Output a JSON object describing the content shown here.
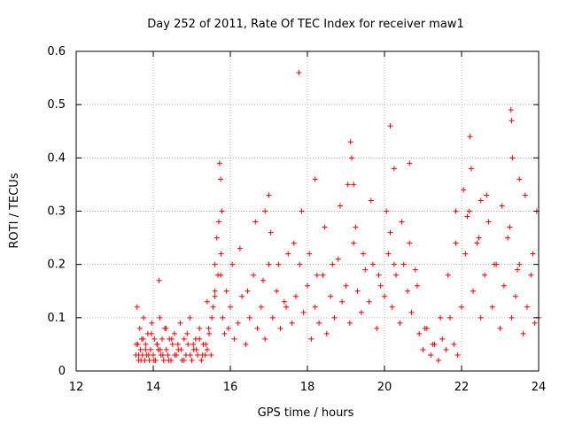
{
  "chart_data": {
    "type": "scatter",
    "title": "Day 252 of 2011, Rate Of TEC Index for receiver maw1",
    "xlabel": "GPS time / hours",
    "ylabel": "ROTI / TECUs",
    "xlim": [
      12,
      24
    ],
    "ylim": [
      0,
      0.6
    ],
    "x_ticks": [
      12,
      14,
      16,
      18,
      20,
      22,
      24
    ],
    "x_tick_labels": [
      "12",
      "14",
      "16",
      "18",
      "20",
      "22",
      "24"
    ],
    "y_ticks": [
      0,
      0.1,
      0.2,
      0.3,
      0.4,
      0.5,
      0.6
    ],
    "y_tick_labels": [
      "0",
      "0.1",
      "0.2",
      "0.3",
      "0.4",
      "0.5",
      "0.6"
    ],
    "grid": true,
    "marker": "+",
    "series": [
      {
        "color": "#ff0000",
        "x": [
          13.55,
          13.58,
          13.6,
          13.62,
          13.65,
          13.67,
          13.7,
          13.72,
          13.75,
          13.78,
          13.8,
          13.83,
          13.86,
          13.9,
          13.93,
          13.96,
          14.0,
          14.03,
          14.06,
          14.1,
          14.13,
          14.17,
          14.2,
          14.23,
          14.27,
          14.3,
          14.34,
          14.38,
          14.42,
          14.46,
          14.5,
          14.55,
          14.6,
          14.65,
          14.7,
          14.75,
          14.8,
          14.85,
          14.9,
          14.95,
          15.0,
          15.05,
          15.1,
          15.15,
          15.2,
          15.25,
          15.3,
          15.35,
          15.4,
          15.45,
          15.5,
          15.55,
          15.6,
          15.65,
          15.7,
          15.75,
          15.8,
          15.85,
          15.9,
          15.95,
          16.0,
          16.1,
          16.2,
          16.3,
          16.4,
          16.5,
          16.6,
          16.7,
          16.8,
          16.9,
          17.0,
          17.1,
          17.2,
          17.3,
          17.4,
          17.5,
          17.6,
          17.7,
          17.8,
          17.9,
          18.0,
          18.1,
          18.2,
          18.3,
          18.4,
          18.5,
          18.6,
          18.7,
          18.8,
          18.9,
          19.0,
          19.1,
          19.2,
          19.3,
          19.4,
          19.5,
          19.6,
          19.7,
          19.8,
          19.9,
          20.0,
          20.1,
          20.2,
          20.3,
          20.4,
          20.5,
          20.6,
          20.7,
          20.8,
          20.9,
          21.0,
          21.1,
          21.2,
          21.3,
          21.4,
          21.5,
          21.6,
          21.7,
          21.8,
          21.9,
          22.0,
          22.1,
          22.2,
          22.3,
          22.4,
          22.5,
          22.6,
          22.7,
          22.8,
          22.9,
          23.0,
          23.1,
          23.2,
          23.3,
          23.4,
          23.5,
          23.6,
          23.7,
          23.8,
          23.9,
          24.0,
          13.56,
          13.62,
          13.68,
          13.74,
          13.8,
          13.88,
          13.95,
          14.02,
          14.1,
          14.18,
          14.25,
          14.33,
          14.4,
          14.48,
          14.56,
          14.64,
          14.72,
          14.8,
          14.88,
          14.96,
          15.04,
          15.12,
          15.2,
          15.28,
          15.36,
          15.44,
          15.52,
          15.6,
          15.68,
          15.76,
          15.72,
          15.75,
          15.78,
          16.05,
          16.25,
          16.45,
          16.65,
          16.85,
          17.05,
          17.25,
          17.45,
          17.65,
          17.85,
          18.05,
          18.25,
          18.45,
          18.65,
          18.85,
          19.05,
          19.15,
          19.25,
          19.45,
          19.65,
          19.85,
          20.05,
          20.15,
          20.25,
          20.45,
          20.65,
          20.85,
          21.05,
          21.25,
          21.45,
          21.65,
          21.85,
          22.05,
          22.15,
          22.25,
          22.45,
          22.65,
          22.85,
          23.05,
          23.25,
          23.45,
          23.65,
          23.85,
          17.78,
          19.12,
          20.15,
          23.28,
          23.3,
          22.22,
          23.32,
          20.65,
          20.25,
          18.2,
          19.2,
          17.0,
          21.85,
          22.5,
          16.9,
          14.15,
          15.4,
          15.6,
          23.5,
          23.95
        ],
        "y": [
          0.03,
          0.12,
          0.05,
          0.02,
          0.08,
          0.04,
          0.06,
          0.03,
          0.1,
          0.02,
          0.05,
          0.03,
          0.07,
          0.02,
          0.04,
          0.09,
          0.03,
          0.06,
          0.02,
          0.05,
          0.04,
          0.1,
          0.03,
          0.06,
          0.02,
          0.08,
          0.04,
          0.03,
          0.06,
          0.02,
          0.05,
          0.07,
          0.03,
          0.04,
          0.09,
          0.02,
          0.06,
          0.03,
          0.05,
          0.1,
          0.02,
          0.04,
          0.06,
          0.03,
          0.08,
          0.02,
          0.05,
          0.03,
          0.04,
          0.07,
          0.03,
          0.12,
          0.2,
          0.25,
          0.28,
          0.18,
          0.1,
          0.07,
          0.15,
          0.08,
          0.12,
          0.06,
          0.09,
          0.14,
          0.05,
          0.1,
          0.18,
          0.08,
          0.12,
          0.06,
          0.2,
          0.1,
          0.15,
          0.08,
          0.13,
          0.22,
          0.09,
          0.14,
          0.2,
          0.11,
          0.16,
          0.06,
          0.12,
          0.09,
          0.18,
          0.07,
          0.14,
          0.1,
          0.21,
          0.13,
          0.16,
          0.09,
          0.24,
          0.15,
          0.11,
          0.19,
          0.13,
          0.2,
          0.08,
          0.16,
          0.14,
          0.22,
          0.12,
          0.18,
          0.09,
          0.2,
          0.15,
          0.11,
          0.19,
          0.07,
          0.04,
          0.08,
          0.03,
          0.05,
          0.02,
          0.06,
          0.04,
          0.1,
          0.05,
          0.03,
          0.12,
          0.22,
          0.3,
          0.15,
          0.24,
          0.1,
          0.18,
          0.28,
          0.12,
          0.2,
          0.08,
          0.16,
          0.25,
          0.1,
          0.14,
          0.2,
          0.07,
          0.12,
          0.18,
          0.09,
          0.1,
          0.05,
          0.03,
          0.02,
          0.06,
          0.04,
          0.03,
          0.07,
          0.02,
          0.05,
          0.04,
          0.03,
          0.08,
          0.02,
          0.06,
          0.03,
          0.05,
          0.04,
          0.02,
          0.07,
          0.03,
          0.05,
          0.04,
          0.06,
          0.03,
          0.05,
          0.08,
          0.1,
          0.14,
          0.18,
          0.22,
          0.39,
          0.36,
          0.3,
          0.2,
          0.23,
          0.15,
          0.28,
          0.17,
          0.26,
          0.2,
          0.12,
          0.24,
          0.3,
          0.22,
          0.18,
          0.27,
          0.2,
          0.31,
          0.35,
          0.4,
          0.27,
          0.22,
          0.32,
          0.18,
          0.3,
          0.26,
          0.2,
          0.28,
          0.24,
          0.16,
          0.08,
          0.05,
          0.1,
          0.18,
          0.24,
          0.34,
          0.29,
          0.38,
          0.25,
          0.33,
          0.2,
          0.31,
          0.27,
          0.19,
          0.33,
          0.22,
          0.56,
          0.43,
          0.46,
          0.49,
          0.47,
          0.44,
          0.4,
          0.39,
          0.38,
          0.36,
          0.35,
          0.33,
          0.3,
          0.32,
          0.3,
          0.17,
          0.13,
          0.15,
          0.36,
          0.3
        ]
      }
    ]
  }
}
